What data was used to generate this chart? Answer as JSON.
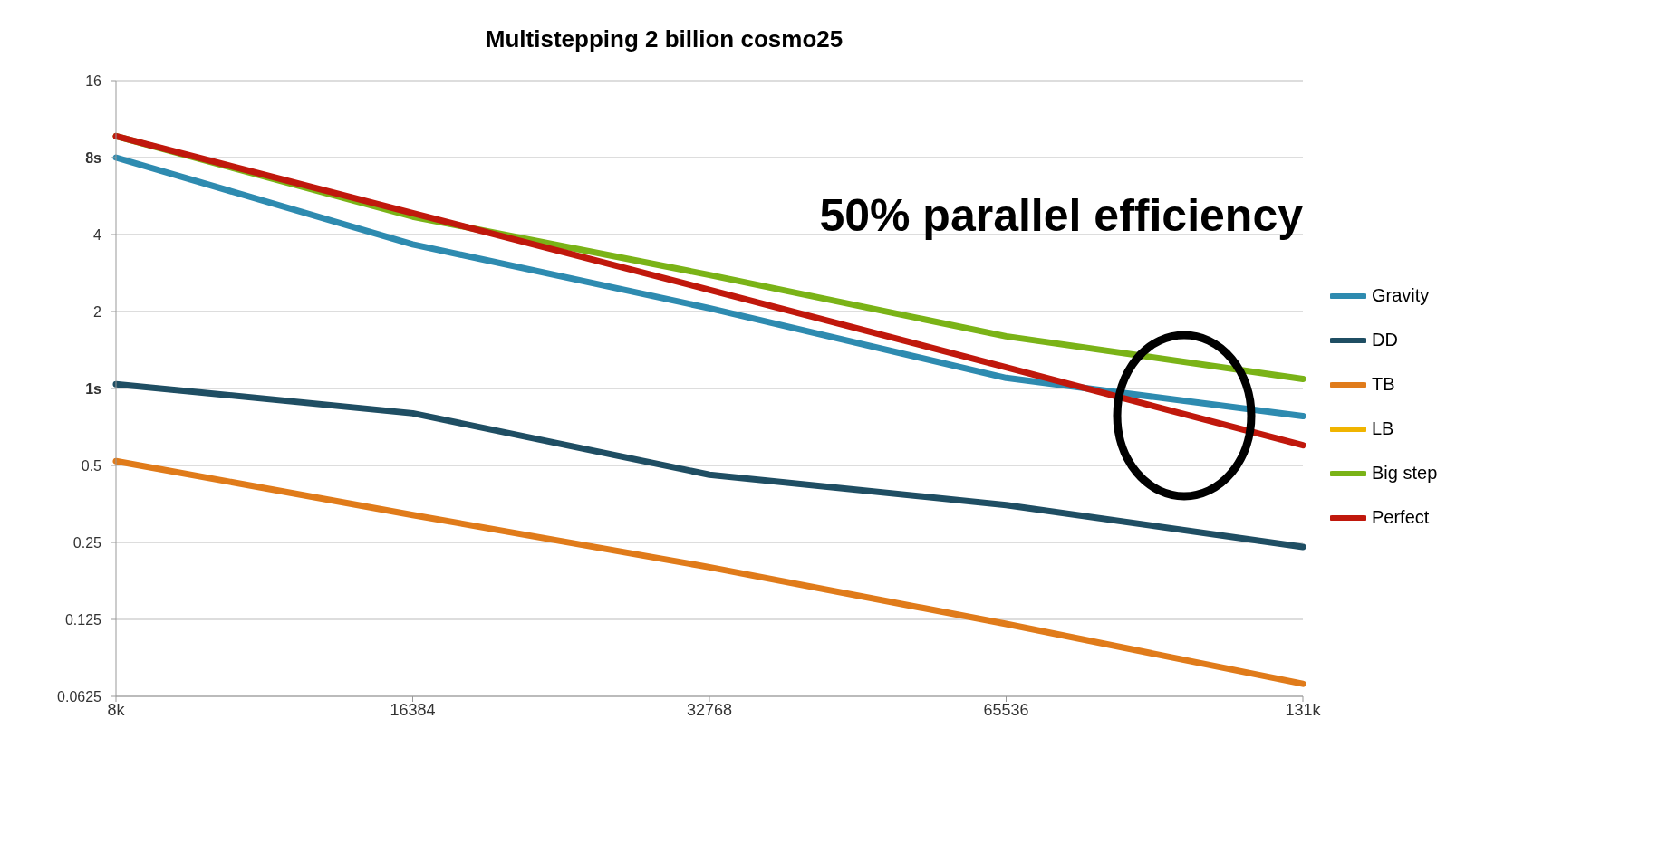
{
  "chart_data": {
    "type": "line",
    "title": "Multistepping 2 billion cosmo25",
    "categories": [
      "8k",
      "16384",
      "32768",
      "65536",
      "131k"
    ],
    "series": [
      {
        "name": "Gravity",
        "color": "#2e8bb0",
        "values": [
          8,
          3.66,
          2.06,
          1.1,
          0.78
        ]
      },
      {
        "name": "DD",
        "color": "#1f4e63",
        "values": [
          1.04,
          0.8,
          0.46,
          0.35,
          0.24
        ]
      },
      {
        "name": "TB",
        "color": "#e07b1a",
        "values": [
          0.52,
          0.32,
          0.2,
          0.12,
          0.07
        ]
      },
      {
        "name": "LB",
        "color": "#f0b400",
        "values": [
          null,
          null,
          null,
          null,
          null
        ]
      },
      {
        "name": "Big step",
        "color": "#7ab317",
        "values": [
          9.7,
          4.7,
          2.78,
          1.6,
          1.09
        ]
      },
      {
        "name": "Perfect",
        "color": "#c0180c",
        "values": [
          9.7,
          4.85,
          2.43,
          1.21,
          0.6
        ]
      }
    ],
    "log": "y",
    "ylim": [
      0.0625,
      16
    ],
    "yticks": [
      0.0625,
      0.125,
      0.25,
      0.5,
      {
        "value": 1,
        "label": "1s"
      },
      2,
      4,
      {
        "value": 8,
        "label": "8s"
      },
      16
    ],
    "grid": "y",
    "legend": "right",
    "marker": "none",
    "line_style": "solid",
    "annotations": [
      "50% parallel efficiency"
    ]
  }
}
